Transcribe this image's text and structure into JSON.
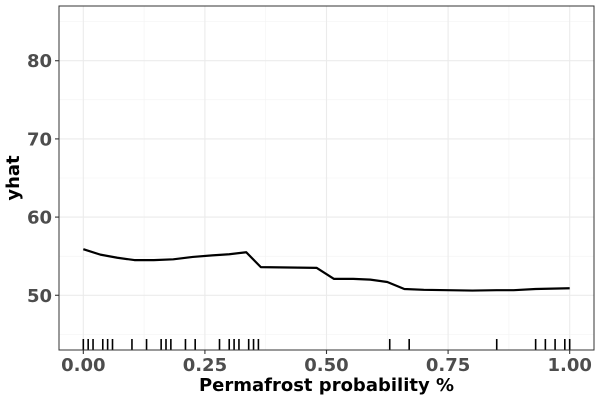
{
  "chart_data": {
    "type": "line",
    "xlabel": "Permafrost probability %",
    "ylabel": "yhat",
    "xlim": [
      -0.05,
      1.05
    ],
    "ylim": [
      43.0,
      87.0
    ],
    "x_ticks": [
      0.0,
      0.25,
      0.5,
      0.75,
      1.0
    ],
    "x_tick_labels": [
      "0.00",
      "0.25",
      "0.50",
      "0.75",
      "1.00"
    ],
    "y_ticks": [
      50,
      60,
      70,
      80
    ],
    "y_tick_labels": [
      "50",
      "60",
      "70",
      "80"
    ],
    "x_minor_ticks": [
      0.125,
      0.375,
      0.625,
      0.875
    ],
    "y_minor_ticks": [
      45,
      55,
      65,
      75,
      85
    ],
    "grid": true,
    "series": [
      {
        "x": [
          0.0,
          0.035,
          0.07,
          0.105,
          0.145,
          0.185,
          0.225,
          0.265,
          0.3,
          0.335,
          0.365,
          0.48,
          0.515,
          0.555,
          0.59,
          0.625,
          0.66,
          0.7,
          0.75,
          0.8,
          0.85,
          0.885,
          0.93,
          0.965,
          1.0
        ],
        "y": [
          55.9,
          55.2,
          54.8,
          54.5,
          54.5,
          54.6,
          54.9,
          55.1,
          55.25,
          55.5,
          53.6,
          53.5,
          52.1,
          52.1,
          52.0,
          51.7,
          50.8,
          50.7,
          50.65,
          50.6,
          50.65,
          50.65,
          50.8,
          50.85,
          50.9
        ],
        "color": "#000000"
      }
    ],
    "rug": [
      0.0,
      0.01,
      0.02,
      0.04,
      0.05,
      0.06,
      0.1,
      0.13,
      0.16,
      0.17,
      0.18,
      0.21,
      0.23,
      0.28,
      0.3,
      0.31,
      0.32,
      0.34,
      0.35,
      0.36,
      0.63,
      0.67,
      0.85,
      0.93,
      0.95,
      0.97,
      0.99,
      1.0
    ]
  }
}
